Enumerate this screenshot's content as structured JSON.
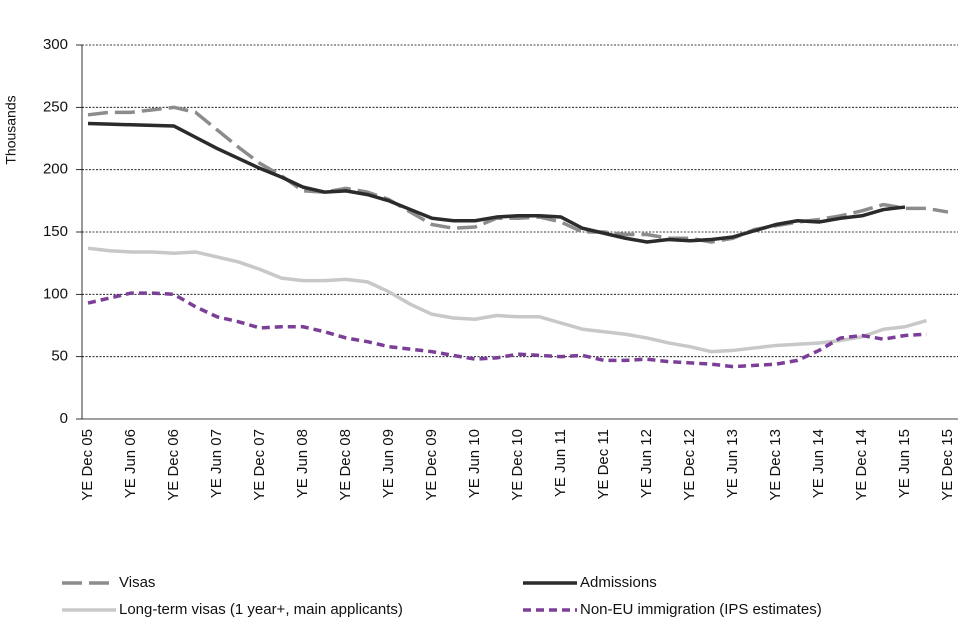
{
  "chart_data": {
    "type": "line",
    "y_label": "Thousands",
    "categories": [
      "YE Dec 05",
      null,
      "YE Jun 06",
      null,
      "YE Dec 06",
      null,
      "YE Jun 07",
      null,
      "YE Dec 07",
      null,
      "YE Jun 08",
      null,
      "YE Dec 08",
      null,
      "YE Jun 09",
      null,
      "YE Dec 09",
      null,
      "YE Jun 10",
      null,
      "YE Dec 10",
      null,
      "YE Jun 11",
      null,
      "YE Dec 11",
      null,
      "YE Jun 12",
      null,
      "YE Dec 12",
      null,
      "YE Jun 13",
      null,
      "YE Dec 13",
      null,
      "YE Jun 14",
      null,
      "YE Dec 14",
      null,
      "YE Jun 15",
      null,
      "YE Dec 15"
    ],
    "series": [
      {
        "name": "Visas",
        "color": "#8c8c8c",
        "dashed": true,
        "values": [
          244,
          246,
          246,
          248,
          250,
          246,
          232,
          218,
          205,
          195,
          183,
          182,
          185,
          182,
          176,
          166,
          156,
          153,
          154,
          161,
          161,
          162,
          158,
          150,
          150,
          148,
          148,
          145,
          145,
          142,
          145,
          152,
          155,
          158,
          160,
          163,
          167,
          172,
          169,
          169,
          166
        ]
      },
      {
        "name": "Admissions",
        "color": "#2b2b2b",
        "dashed": false,
        "values": [
          237,
          236.5,
          236,
          235.5,
          235,
          226,
          217,
          209,
          201,
          194,
          186,
          182,
          183,
          180,
          175,
          168,
          161,
          159,
          159,
          162,
          163,
          163,
          162,
          153,
          149,
          145,
          142,
          144,
          143,
          144,
          146,
          151,
          156,
          159,
          158,
          161,
          163,
          168,
          170,
          null,
          null
        ]
      },
      {
        "name": "Long-term visas (1 year+, main applicants)",
        "color": "#c8c8c8",
        "dashed": false,
        "values": [
          137,
          135,
          134,
          134,
          133,
          134,
          130,
          126,
          120,
          113,
          111,
          111,
          112,
          110,
          102,
          92,
          84,
          81,
          80,
          83,
          82,
          82,
          77,
          72,
          70,
          68,
          65,
          61,
          58,
          54,
          55,
          57,
          59,
          60,
          61,
          63,
          66,
          72,
          74,
          79,
          null
        ]
      },
      {
        "name": "Non-EU immigration (IPS estimates)",
        "color": "#7b3f98",
        "dashed": true,
        "values": [
          93,
          97,
          101,
          101,
          100,
          90,
          82,
          78,
          73,
          74,
          74,
          70,
          65,
          62,
          58,
          56,
          54,
          51,
          48,
          49,
          52,
          51,
          50,
          51,
          47,
          47,
          48,
          46,
          45,
          44,
          42,
          43,
          44,
          47,
          55,
          65,
          67,
          64,
          67,
          68,
          null
        ]
      }
    ],
    "ylim": [
      0,
      300
    ],
    "yticks": [
      0,
      50,
      100,
      150,
      200,
      250,
      300
    ],
    "grid": true
  }
}
